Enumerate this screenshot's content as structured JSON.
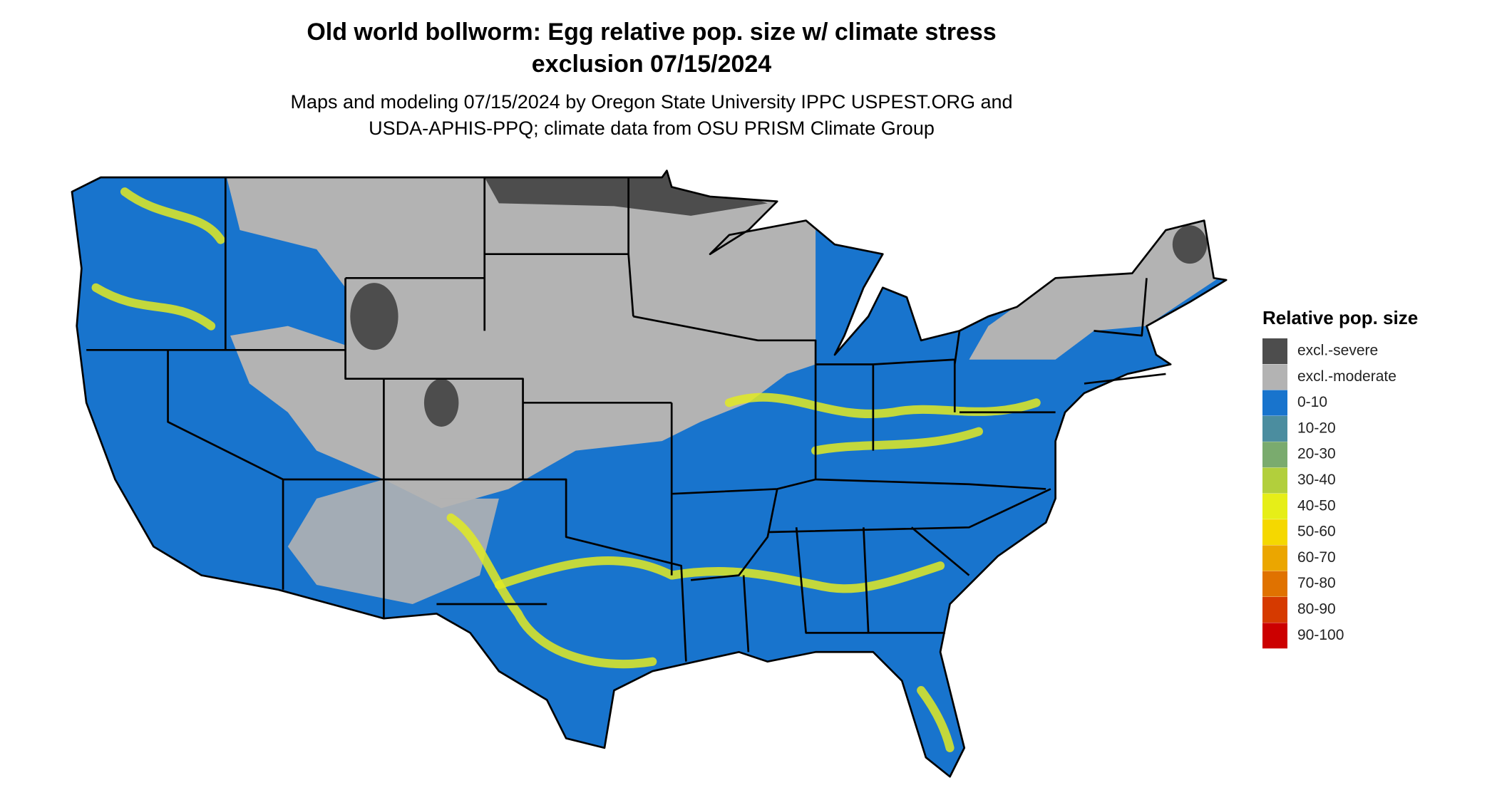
{
  "header": {
    "title_lines": [
      "Old world bollworm: Egg relative pop. size w/ climate stress",
      "exclusion 07/15/2024"
    ],
    "subtitle_lines": [
      "Maps and modeling 07/15/2024 by Oregon State University IPPC USPEST.ORG and",
      "USDA-APHIS-PPQ; climate data from OSU PRISM Climate Group"
    ]
  },
  "legend": {
    "title": "Relative pop. size",
    "items": [
      {
        "label": "excl.-severe",
        "color": "#4d4d4d"
      },
      {
        "label": "excl.-moderate",
        "color": "#b3b3b3"
      },
      {
        "label": "0-10",
        "color": "#1874cd"
      },
      {
        "label": "10-20",
        "color": "#4b8d9f"
      },
      {
        "label": "20-30",
        "color": "#7aab6e"
      },
      {
        "label": "30-40",
        "color": "#b2cf3c"
      },
      {
        "label": "40-50",
        "color": "#e6ee18"
      },
      {
        "label": "50-60",
        "color": "#f5d800"
      },
      {
        "label": "60-70",
        "color": "#eba600"
      },
      {
        "label": "70-80",
        "color": "#e07200"
      },
      {
        "label": "80-90",
        "color": "#d63a00"
      },
      {
        "label": "90-100",
        "color": "#cc0000"
      }
    ]
  }
}
